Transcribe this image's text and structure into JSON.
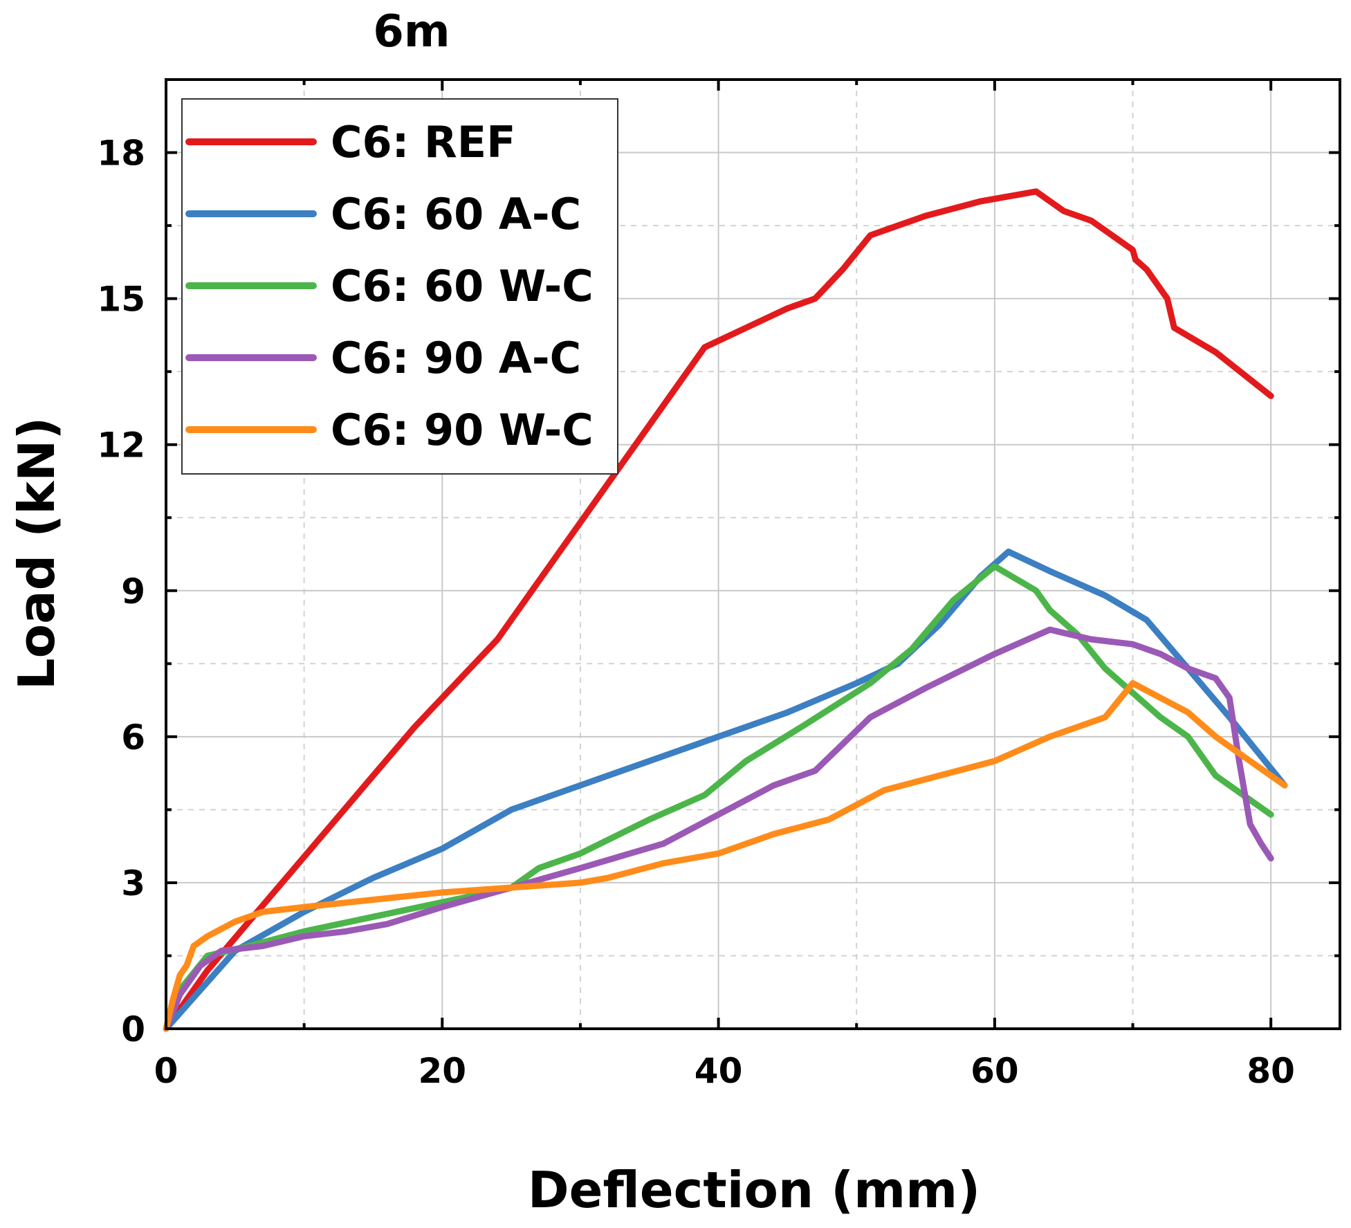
{
  "chart_data": {
    "type": "line",
    "title": "6m",
    "xlabel": "Deflection (mm)",
    "ylabel": "Load (kN)",
    "xlim": [
      0,
      85
    ],
    "ylim": [
      0,
      19.5
    ],
    "xticks": [
      0,
      20,
      40,
      60,
      80
    ],
    "yticks": [
      0,
      3,
      6,
      9,
      12,
      15,
      18
    ],
    "grid": true,
    "legend_position": "top-left",
    "series": [
      {
        "name": "C6: REF",
        "color": "#e31a1c",
        "x": [
          0,
          3,
          6,
          9,
          12,
          15,
          18,
          21,
          24,
          27,
          30,
          33,
          36,
          39,
          42,
          45,
          47,
          49,
          51,
          55,
          59,
          63,
          65,
          67,
          69,
          70,
          70.2,
          71,
          72.5,
          73,
          76,
          80
        ],
        "y": [
          0,
          1.2,
          2.2,
          3.2,
          4.2,
          5.2,
          6.2,
          7.1,
          8.0,
          9.2,
          10.4,
          11.6,
          12.8,
          14.0,
          14.4,
          14.8,
          15.0,
          15.6,
          16.3,
          16.7,
          17.0,
          17.2,
          16.8,
          16.6,
          16.2,
          16.0,
          15.8,
          15.6,
          15.0,
          14.4,
          13.9,
          13.0
        ]
      },
      {
        "name": "C6: 60 A-C",
        "color": "#3c7fc2",
        "x": [
          0,
          5,
          10,
          15,
          20,
          25,
          30,
          35,
          40,
          45,
          50,
          53,
          56,
          59,
          61,
          64,
          68,
          71,
          74,
          77,
          81
        ],
        "y": [
          0,
          1.6,
          2.4,
          3.1,
          3.7,
          4.5,
          5.0,
          5.5,
          6.0,
          6.5,
          7.1,
          7.5,
          8.3,
          9.3,
          9.8,
          9.4,
          8.9,
          8.4,
          7.4,
          6.4,
          5.0
        ]
      },
      {
        "name": "C6: 60 W-C",
        "color": "#4cb54a",
        "x": [
          0,
          1,
          3,
          6,
          10,
          15,
          20,
          25,
          27,
          30,
          35,
          39,
          42,
          46,
          51,
          54,
          57,
          60,
          63,
          64,
          66,
          68,
          70,
          72,
          74,
          76,
          80
        ],
        "y": [
          0,
          0.8,
          1.5,
          1.7,
          2.0,
          2.3,
          2.6,
          2.9,
          3.3,
          3.6,
          4.3,
          4.8,
          5.5,
          6.2,
          7.1,
          7.8,
          8.8,
          9.5,
          9.0,
          8.6,
          8.1,
          7.4,
          6.9,
          6.4,
          6.0,
          5.2,
          4.4
        ]
      },
      {
        "name": "C6: 90 A-C",
        "color": "#9b59b6",
        "x": [
          0,
          1,
          2.5,
          4,
          7,
          10,
          13,
          16,
          20,
          25,
          30,
          36,
          40,
          44,
          47,
          51,
          55,
          60,
          64,
          67,
          70,
          72,
          74,
          76,
          77,
          77.7,
          78.5,
          79.3,
          80
        ],
        "y": [
          0,
          0.7,
          1.3,
          1.6,
          1.7,
          1.9,
          2.0,
          2.15,
          2.5,
          2.9,
          3.3,
          3.8,
          4.4,
          5.0,
          5.3,
          6.4,
          7.0,
          7.7,
          8.2,
          8.0,
          7.9,
          7.7,
          7.4,
          7.2,
          6.8,
          5.5,
          4.2,
          3.8,
          3.5
        ]
      },
      {
        "name": "C6: 90 W-C",
        "color": "#ff8c1a",
        "x": [
          0,
          0.5,
          1,
          1.5,
          2,
          3,
          5,
          7,
          10,
          15,
          20,
          25,
          30,
          32,
          36,
          40,
          44,
          48,
          52,
          56,
          60,
          64,
          68,
          70,
          72,
          74,
          76,
          78,
          81
        ],
        "y": [
          0,
          0.6,
          1.1,
          1.3,
          1.7,
          1.9,
          2.2,
          2.4,
          2.5,
          2.65,
          2.8,
          2.9,
          3.0,
          3.1,
          3.4,
          3.6,
          4.0,
          4.3,
          4.9,
          5.2,
          5.5,
          6.0,
          6.4,
          7.1,
          6.8,
          6.5,
          6.0,
          5.6,
          5.0
        ]
      }
    ]
  }
}
